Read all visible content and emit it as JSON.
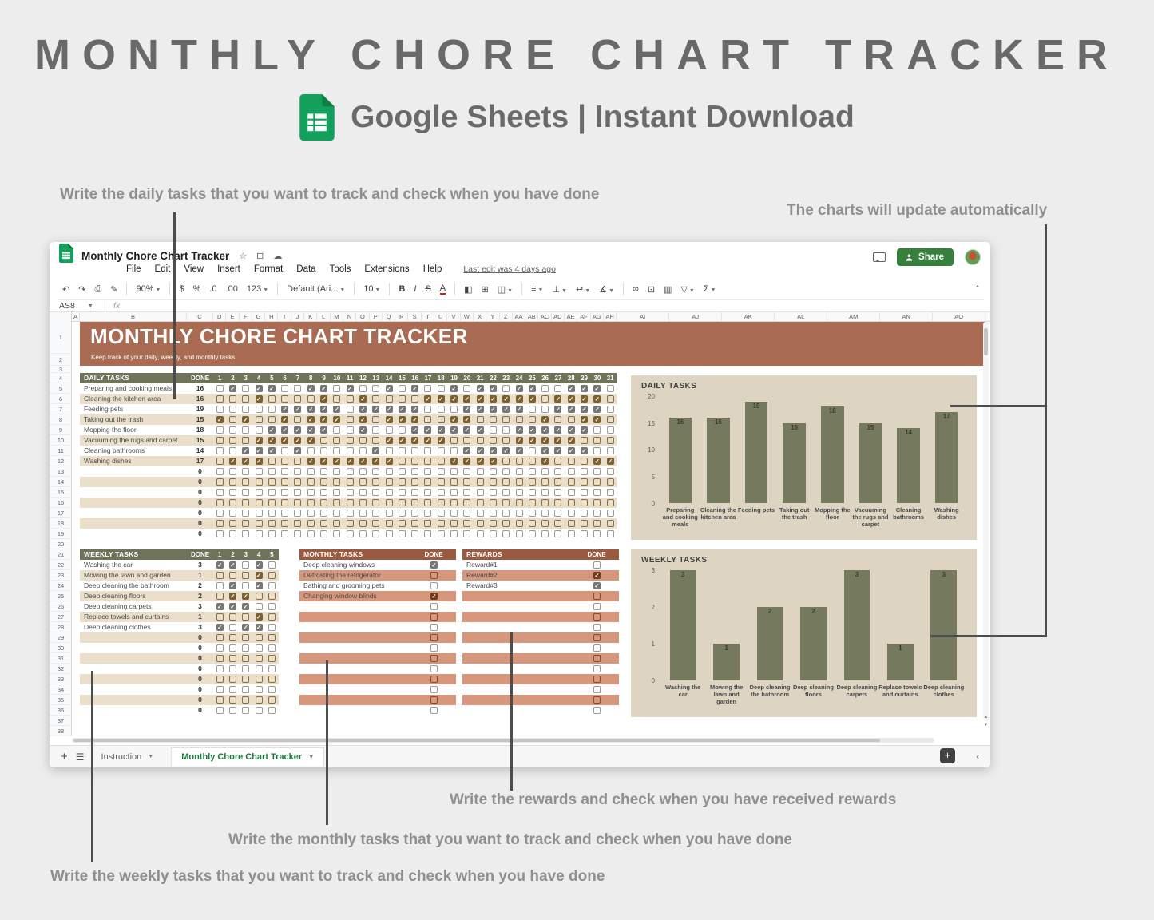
{
  "hero": {
    "title": "MONTHLY CHORE CHART TRACKER",
    "subtitle": "Google Sheets | Instant Download"
  },
  "annotations": {
    "daily": "Write the daily tasks that you want to track and check when you have done",
    "charts": "The charts will update automatically",
    "rewards": "Write the rewards and check when you have received rewards",
    "monthly": "Write the monthly tasks that you want to track and check when you have done",
    "weekly": "Write the weekly tasks that you want to track and check when you have done"
  },
  "app": {
    "doc_title": "Monthly Chore Chart Tracker",
    "menu": [
      "File",
      "Edit",
      "View",
      "Insert",
      "Format",
      "Data",
      "Tools",
      "Extensions",
      "Help"
    ],
    "last_edit": "Last edit was 4 days ago",
    "share_label": "Share",
    "name_box": "AS8",
    "fx_label": "fx",
    "toolbar": [
      {
        "name": "undo-icon",
        "glyph": "↶"
      },
      {
        "name": "redo-icon",
        "glyph": "↷"
      },
      {
        "name": "print-icon",
        "glyph": "⎙"
      },
      {
        "name": "paint-format-icon",
        "glyph": "✎"
      },
      {
        "sep": true
      },
      {
        "name": "zoom-select",
        "label": "90%",
        "caret": true
      },
      {
        "sep": true
      },
      {
        "name": "currency-format-icon",
        "glyph": "$"
      },
      {
        "name": "percent-format-icon",
        "glyph": "%"
      },
      {
        "name": "decrease-decimal-icon",
        "glyph": ".0"
      },
      {
        "name": "increase-decimal-icon",
        "glyph": ".00"
      },
      {
        "name": "number-format-select",
        "label": "123",
        "caret": true
      },
      {
        "sep": true
      },
      {
        "name": "font-select",
        "label": "Default (Ari...",
        "caret": true
      },
      {
        "sep": true
      },
      {
        "name": "font-size-select",
        "label": "10",
        "caret": true
      },
      {
        "sep": true
      },
      {
        "name": "bold-icon",
        "glyph": "B",
        "cls": "b"
      },
      {
        "name": "italic-icon",
        "glyph": "I",
        "cls": "i"
      },
      {
        "name": "strikethrough-icon",
        "glyph": "S",
        "cls": "s"
      },
      {
        "name": "text-color-icon",
        "glyph": "A",
        "cls": "ua"
      },
      {
        "sep": true
      },
      {
        "name": "fill-color-icon",
        "glyph": "◧"
      },
      {
        "name": "borders-icon",
        "glyph": "⊞"
      },
      {
        "name": "merge-cells-icon",
        "glyph": "◫",
        "caret": true
      },
      {
        "sep": true
      },
      {
        "name": "horizontal-align-icon",
        "glyph": "≡",
        "caret": true
      },
      {
        "name": "vertical-align-icon",
        "glyph": "⊥",
        "caret": true
      },
      {
        "name": "text-wrap-icon",
        "glyph": "↩",
        "caret": true
      },
      {
        "name": "text-rotate-icon",
        "glyph": "∡",
        "caret": true
      },
      {
        "sep": true
      },
      {
        "name": "insert-link-icon",
        "glyph": "∞"
      },
      {
        "name": "insert-comment-icon",
        "glyph": "⊡"
      },
      {
        "name": "insert-chart-icon",
        "glyph": "▥"
      },
      {
        "name": "filter-icon",
        "glyph": "▽",
        "caret": true
      },
      {
        "name": "functions-icon",
        "glyph": "Σ",
        "caret": true
      }
    ],
    "tabs": [
      {
        "label": "Instruction",
        "active": false
      },
      {
        "label": "Monthly Chore Chart Tracker",
        "active": true
      }
    ]
  },
  "sheet": {
    "banner_title": "MONTHLY CHORE CHART TRACKER",
    "banner_subtitle": "Keep track of your daily, weekly, and monthly tasks",
    "columns": [
      "A",
      "B",
      "C",
      "D",
      "E",
      "F",
      "G",
      "H",
      "I",
      "J",
      "K",
      "L",
      "M",
      "N",
      "O",
      "P",
      "Q",
      "R",
      "S",
      "T",
      "U",
      "V",
      "W",
      "X",
      "Y",
      "Z",
      "AA",
      "AB",
      "AC",
      "AD",
      "AE",
      "AF",
      "AG",
      "AH",
      "AI",
      "AJ",
      "AK",
      "AL",
      "AM",
      "AN",
      "AO"
    ],
    "visible_rows": 38,
    "daily": {
      "header": "DAILY TASKS",
      "done_label": "DONE",
      "days": 31,
      "empty_rows": 7,
      "tasks": [
        {
          "name": "Preparing and cooking meals",
          "done": 16,
          "checked": [
            2,
            4,
            5,
            8,
            9,
            11,
            14,
            16,
            19,
            21,
            22,
            24,
            25,
            28,
            29,
            30
          ]
        },
        {
          "name": "Cleaning the kitchen area",
          "done": 16,
          "checked": [
            4,
            9,
            12,
            17,
            18,
            19,
            20,
            21,
            22,
            23,
            24,
            25,
            27,
            28,
            29,
            30
          ]
        },
        {
          "name": "Feeding pets",
          "done": 19,
          "checked": [
            6,
            7,
            8,
            9,
            10,
            12,
            13,
            14,
            15,
            16,
            20,
            21,
            22,
            23,
            24,
            27,
            28,
            29,
            30
          ]
        },
        {
          "name": "Taking out the trash",
          "done": 15,
          "checked": [
            1,
            3,
            6,
            8,
            9,
            10,
            12,
            14,
            15,
            16,
            19,
            20,
            26,
            29,
            30
          ]
        },
        {
          "name": "Mopping the floor",
          "done": 18,
          "checked": [
            5,
            6,
            7,
            8,
            9,
            12,
            16,
            17,
            18,
            19,
            20,
            21,
            24,
            25,
            26,
            27,
            28,
            29
          ]
        },
        {
          "name": "Vacuuming the rugs and carpet",
          "done": 15,
          "checked": [
            4,
            5,
            6,
            7,
            8,
            14,
            15,
            16,
            17,
            18,
            24,
            25,
            26,
            27,
            28
          ]
        },
        {
          "name": "Cleaning bathrooms",
          "done": 14,
          "checked": [
            3,
            4,
            5,
            7,
            13,
            20,
            21,
            22,
            23,
            24,
            26,
            27,
            28,
            29
          ]
        },
        {
          "name": "Washing dishes",
          "done": 17,
          "checked": [
            2,
            3,
            4,
            8,
            9,
            10,
            11,
            12,
            13,
            14,
            19,
            20,
            21,
            22,
            26,
            30,
            31
          ]
        }
      ]
    },
    "weekly": {
      "header": "WEEKLY TASKS",
      "done_label": "DONE",
      "weeks": 5,
      "empty_rows": 8,
      "tasks": [
        {
          "name": "Washing the car",
          "done": 3,
          "checked": [
            1,
            2,
            4
          ]
        },
        {
          "name": "Mowing the lawn and garden",
          "done": 1,
          "checked": [
            4
          ]
        },
        {
          "name": "Deep cleaning the bathroom",
          "done": 2,
          "checked": [
            2,
            4
          ]
        },
        {
          "name": "Deep cleaning floors",
          "done": 2,
          "checked": [
            2,
            3
          ]
        },
        {
          "name": "Deep cleaning carpets",
          "done": 3,
          "checked": [
            1,
            2,
            3
          ]
        },
        {
          "name": "Replace towels and curtains",
          "done": 1,
          "checked": [
            4
          ]
        },
        {
          "name": "Deep cleaning clothes",
          "done": 3,
          "checked": [
            1,
            3,
            4
          ]
        }
      ]
    },
    "monthly": {
      "header": "MONTHLY TASKS",
      "done_label": "DONE",
      "empty_rows": 11,
      "tasks": [
        {
          "name": "Deep cleaning windows",
          "done": true
        },
        {
          "name": "Defrosting the refrigerator",
          "done": false
        },
        {
          "name": "Bathing and grooming pets",
          "done": false
        },
        {
          "name": "Changing window blinds",
          "done": true
        }
      ]
    },
    "rewards": {
      "header": "REWARDS",
      "done_label": "DONE",
      "empty_rows": 12,
      "tasks": [
        {
          "name": "Reward#1",
          "done": false
        },
        {
          "name": "Reward#2",
          "done": true
        },
        {
          "name": "Reward#3",
          "done": true
        }
      ]
    }
  },
  "chart_data": [
    {
      "type": "bar",
      "title": "DAILY TASKS",
      "categories": [
        "Preparing and cooking meals",
        "Cleaning the kitchen area",
        "Feeding pets",
        "Taking out the trash",
        "Mopping the floor",
        "Vacuuming the rugs and carpet",
        "Cleaning bathrooms",
        "Washing dishes"
      ],
      "values": [
        16,
        16,
        19,
        15,
        18,
        15,
        14,
        17
      ],
      "xlabel": "",
      "ylabel": "",
      "ylim": [
        0,
        20
      ],
      "yticks": [
        0,
        5,
        10,
        15,
        20
      ],
      "grid": false,
      "legend": "none"
    },
    {
      "type": "bar",
      "title": "WEEKLY TASKS",
      "categories": [
        "Washing the car",
        "Mowing the lawn and garden",
        "Deep cleaning the bathroom",
        "Deep cleaning floors",
        "Deep cleaning carpets",
        "Replace towels and curtains",
        "Deep cleaning clothes"
      ],
      "values": [
        3,
        1,
        2,
        2,
        3,
        1,
        3
      ],
      "xlabel": "",
      "ylabel": "",
      "ylim": [
        0,
        3
      ],
      "yticks": [
        0,
        1,
        2,
        3
      ],
      "grid": false,
      "legend": "none"
    }
  ],
  "colors": {
    "banner_brown": "#a96b52",
    "table_header_olive": "#6f735a",
    "table_header_rust": "#9a5a40",
    "row_beige": "#e9dfca",
    "row_salmon": "#d6977c",
    "checkbox_gray": "#767676",
    "checkbox_brown": "#7d6030",
    "checkbox_dark_rust": "#6c3b20",
    "chart_bg": "#ddd5c2",
    "bar_olive": "#75795e",
    "sheets_green": "#12a05c",
    "share_green": "#35803b",
    "annotation_gray": "#8f8f8f"
  }
}
